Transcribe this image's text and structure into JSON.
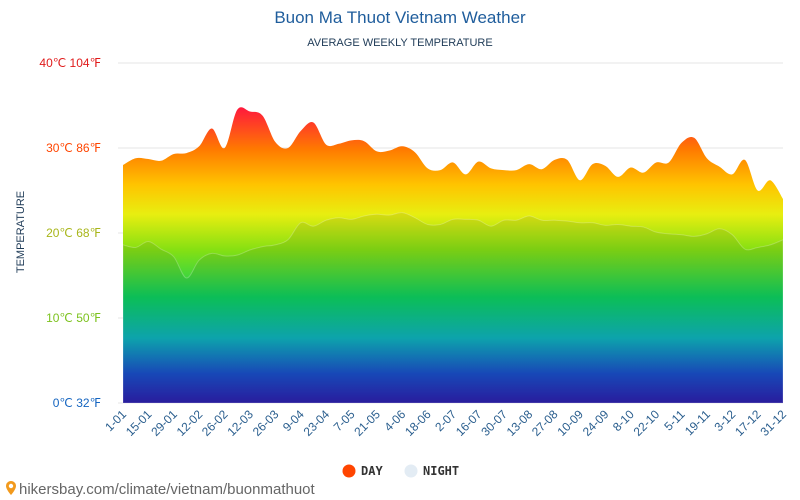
{
  "chart_data": {
    "type": "area",
    "title": "Buon Ma Thuot Vietnam Weather",
    "subtitle": "AVERAGE WEEKLY TEMPERATURE",
    "ylabel": "TEMPERATURE",
    "xlabel": "",
    "ylim": [
      0,
      40
    ],
    "y_unit": "°C",
    "grid": true,
    "y_ticks": [
      {
        "label": "0℃ 32℉",
        "value": 0,
        "color": "#1565c0"
      },
      {
        "label": "10℃ 50℉",
        "value": 10,
        "color": "#7cc21e"
      },
      {
        "label": "20℃ 68℉",
        "value": 20,
        "color": "#a8b61a"
      },
      {
        "label": "30℃ 86℉",
        "value": 30,
        "color": "#ff4500"
      },
      {
        "label": "40℃ 104℉",
        "value": 40,
        "color": "#e01a1a"
      }
    ],
    "x_labels": [
      "1-01",
      "15-01",
      "29-01",
      "12-02",
      "26-02",
      "12-03",
      "26-03",
      "9-04",
      "23-04",
      "7-05",
      "21-05",
      "4-06",
      "18-06",
      "2-07",
      "16-07",
      "30-07",
      "13-08",
      "27-08",
      "10-09",
      "24-09",
      "8-10",
      "22-10",
      "5-11",
      "19-11",
      "3-12",
      "17-12",
      "31-12"
    ],
    "series": [
      {
        "name": "DAY",
        "color": "#ff4500",
        "values": [
          28.0,
          28.8,
          28.7,
          28.5,
          29.3,
          29.4,
          30.2,
          32.3,
          30.0,
          34.5,
          34.3,
          33.8,
          30.7,
          30.0,
          32.0,
          33.0,
          30.4,
          30.5,
          30.9,
          30.8,
          29.6,
          29.7,
          30.2,
          29.5,
          27.6,
          27.4,
          28.3,
          26.9,
          28.4,
          27.6,
          27.4,
          27.4,
          28.1,
          27.5,
          28.6,
          28.6,
          26.2,
          28.1,
          27.9,
          26.6,
          27.7,
          27.1,
          28.3,
          28.3,
          30.6,
          31.2,
          28.8,
          27.8,
          26.9,
          28.6,
          25.0,
          26.2,
          24.0
        ]
      },
      {
        "name": "NIGHT",
        "color": "#e3ecf4",
        "values": [
          18.6,
          18.3,
          19.0,
          18.1,
          17.2,
          14.7,
          16.8,
          17.6,
          17.3,
          17.4,
          18.0,
          18.4,
          18.6,
          19.2,
          21.2,
          20.8,
          21.5,
          21.8,
          21.6,
          22.0,
          22.2,
          22.1,
          22.4,
          21.8,
          21.0,
          21.0,
          21.6,
          21.6,
          21.5,
          20.8,
          21.5,
          21.5,
          22.0,
          21.5,
          21.5,
          21.4,
          21.2,
          21.2,
          20.9,
          21.0,
          20.8,
          20.7,
          20.1,
          19.9,
          19.8,
          19.6,
          19.9,
          20.5,
          19.8,
          18.1,
          18.3,
          18.6,
          19.2
        ]
      }
    ],
    "legend": {
      "position": "bottom-center",
      "items": [
        "DAY",
        "NIGHT"
      ]
    }
  },
  "footer": {
    "source_text": "hikersbay.com/climate/vietnam/buonmathuot",
    "pin_icon": "map-pin-icon"
  }
}
